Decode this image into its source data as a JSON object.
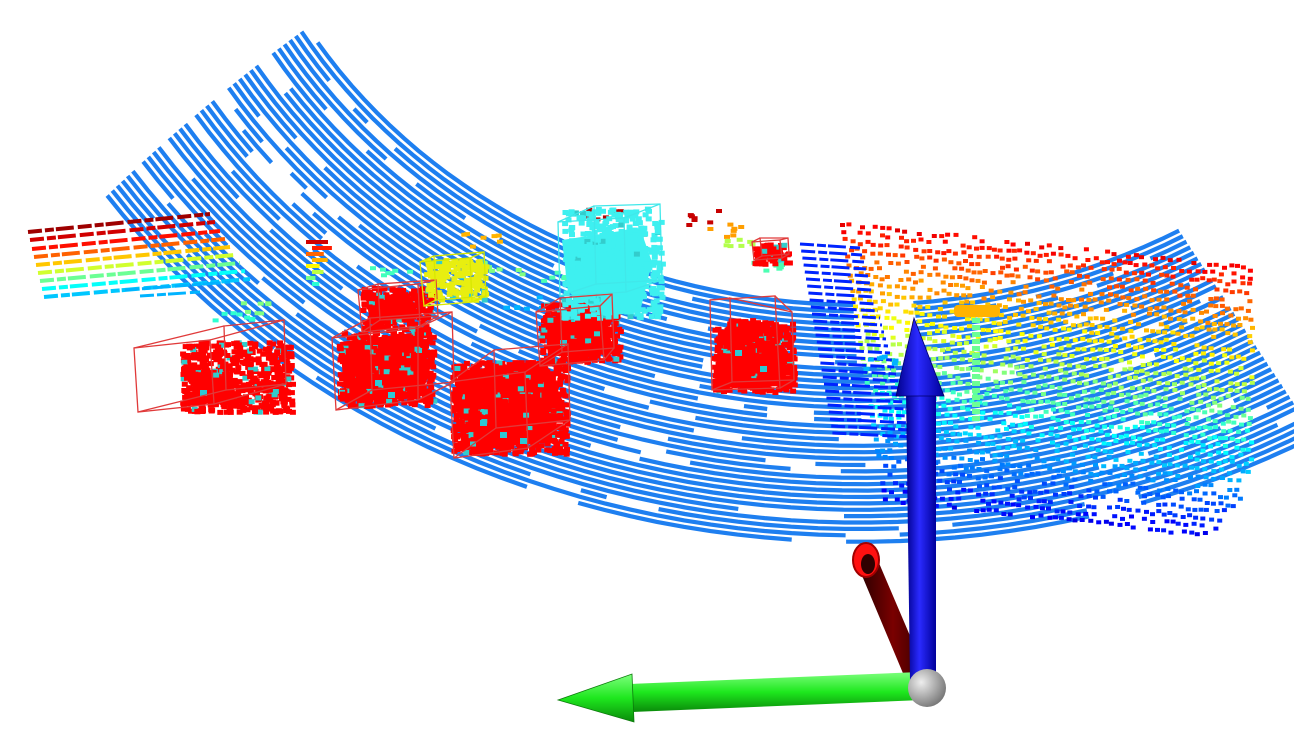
{
  "viewer": {
    "background": "#ffffff",
    "point_colormap": "jet",
    "colors": {
      "ground": "#1e7ff0",
      "car_points": "#ff0000",
      "box_car": "#e03a3a",
      "box_other": "#40e8ea",
      "box_cyclist": "#d8e800",
      "axis_x": "#d01010",
      "axis_y": "#22ee22",
      "axis_z": "#1010ee",
      "origin": "#aaaaaa"
    }
  },
  "objects": [
    {
      "name": "car-1",
      "kind": "car"
    },
    {
      "name": "car-2",
      "kind": "car"
    },
    {
      "name": "car-3",
      "kind": "car"
    },
    {
      "name": "car-4",
      "kind": "car"
    },
    {
      "name": "car-5",
      "kind": "car"
    },
    {
      "name": "car-6",
      "kind": "car"
    },
    {
      "name": "car-7",
      "kind": "car"
    },
    {
      "name": "van-1",
      "kind": "van"
    },
    {
      "name": "cyclist-1",
      "kind": "cyclist"
    }
  ],
  "axes": [
    {
      "name": "x-axis",
      "color_key": "axis_x"
    },
    {
      "name": "y-axis",
      "color_key": "axis_y"
    },
    {
      "name": "z-axis",
      "color_key": "axis_z"
    }
  ]
}
